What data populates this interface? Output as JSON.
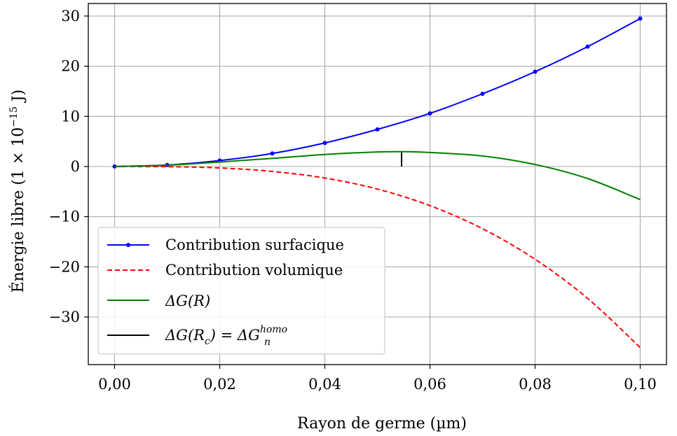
{
  "chart_data": {
    "type": "line",
    "xlabel": "Rayon de germe (µm)",
    "ylabel": "Énergie libre (1 × 10",
    "ylabel_exp": "−15",
    "ylabel_unit": " J)",
    "xlim": [
      -0.005,
      0.105
    ],
    "ylim": [
      -39.5,
      32.5
    ],
    "grid": true,
    "legend_position": "lower left",
    "x_ticks": [
      {
        "value": 0.0,
        "label": "0,00"
      },
      {
        "value": 0.02,
        "label": "0,02"
      },
      {
        "value": 0.04,
        "label": "0,04"
      },
      {
        "value": 0.06,
        "label": "0,06"
      },
      {
        "value": 0.08,
        "label": "0,08"
      },
      {
        "value": 0.1,
        "label": "0,10"
      }
    ],
    "y_ticks": [
      {
        "value": 30,
        "label": "30"
      },
      {
        "value": 20,
        "label": "20"
      },
      {
        "value": 10,
        "label": "10"
      },
      {
        "value": 0,
        "label": "0"
      },
      {
        "value": -10,
        "label": "−10"
      },
      {
        "value": -20,
        "label": "−20"
      },
      {
        "value": -30,
        "label": "−30"
      }
    ],
    "series": [
      {
        "name": "Contribution surfacique",
        "color": "#0000ff",
        "style": "solid",
        "markers": true,
        "x": [
          0,
          0.01,
          0.02,
          0.03,
          0.04,
          0.05,
          0.06,
          0.07,
          0.08,
          0.09,
          0.1
        ],
        "y": [
          0,
          0.3,
          1.2,
          2.6,
          4.7,
          7.4,
          10.6,
          14.5,
          18.9,
          23.9,
          29.5
        ]
      },
      {
        "name": "Contribution volumique",
        "color": "#ff0000",
        "style": "dashed",
        "markers": false,
        "x": [
          0,
          0.01,
          0.02,
          0.03,
          0.04,
          0.05,
          0.06,
          0.07,
          0.08,
          0.09,
          0.1
        ],
        "y": [
          0,
          -0.04,
          -0.29,
          -0.98,
          -2.3,
          -4.5,
          -7.8,
          -12.4,
          -18.5,
          -26.3,
          -36.1
        ]
      },
      {
        "name": "ΔG(R)",
        "color": "#008000",
        "style": "solid",
        "markers": false,
        "x": [
          0,
          0.01,
          0.02,
          0.03,
          0.04,
          0.05,
          0.055,
          0.06,
          0.07,
          0.08,
          0.09,
          0.1
        ],
        "y": [
          0,
          0.26,
          0.9,
          1.62,
          2.4,
          2.9,
          2.95,
          2.8,
          2.1,
          0.4,
          -2.4,
          -6.6
        ]
      },
      {
        "name": "ΔG(Rc) = ΔGn homo",
        "color": "#000000",
        "style": "solid",
        "markers": false,
        "x": [
          0.0546,
          0.0546
        ],
        "y": [
          0,
          2.95
        ]
      }
    ]
  },
  "legend": {
    "items": [
      {
        "label": "Contribution surfacique"
      },
      {
        "label": "Contribution volumique"
      },
      {
        "label_main": "ΔG(R)"
      },
      {
        "label_main": "ΔG(R",
        "label_sub": "c",
        "label_mid": ") = ΔG",
        "label_sup": "homo",
        "label_sub2": "n"
      }
    ]
  }
}
